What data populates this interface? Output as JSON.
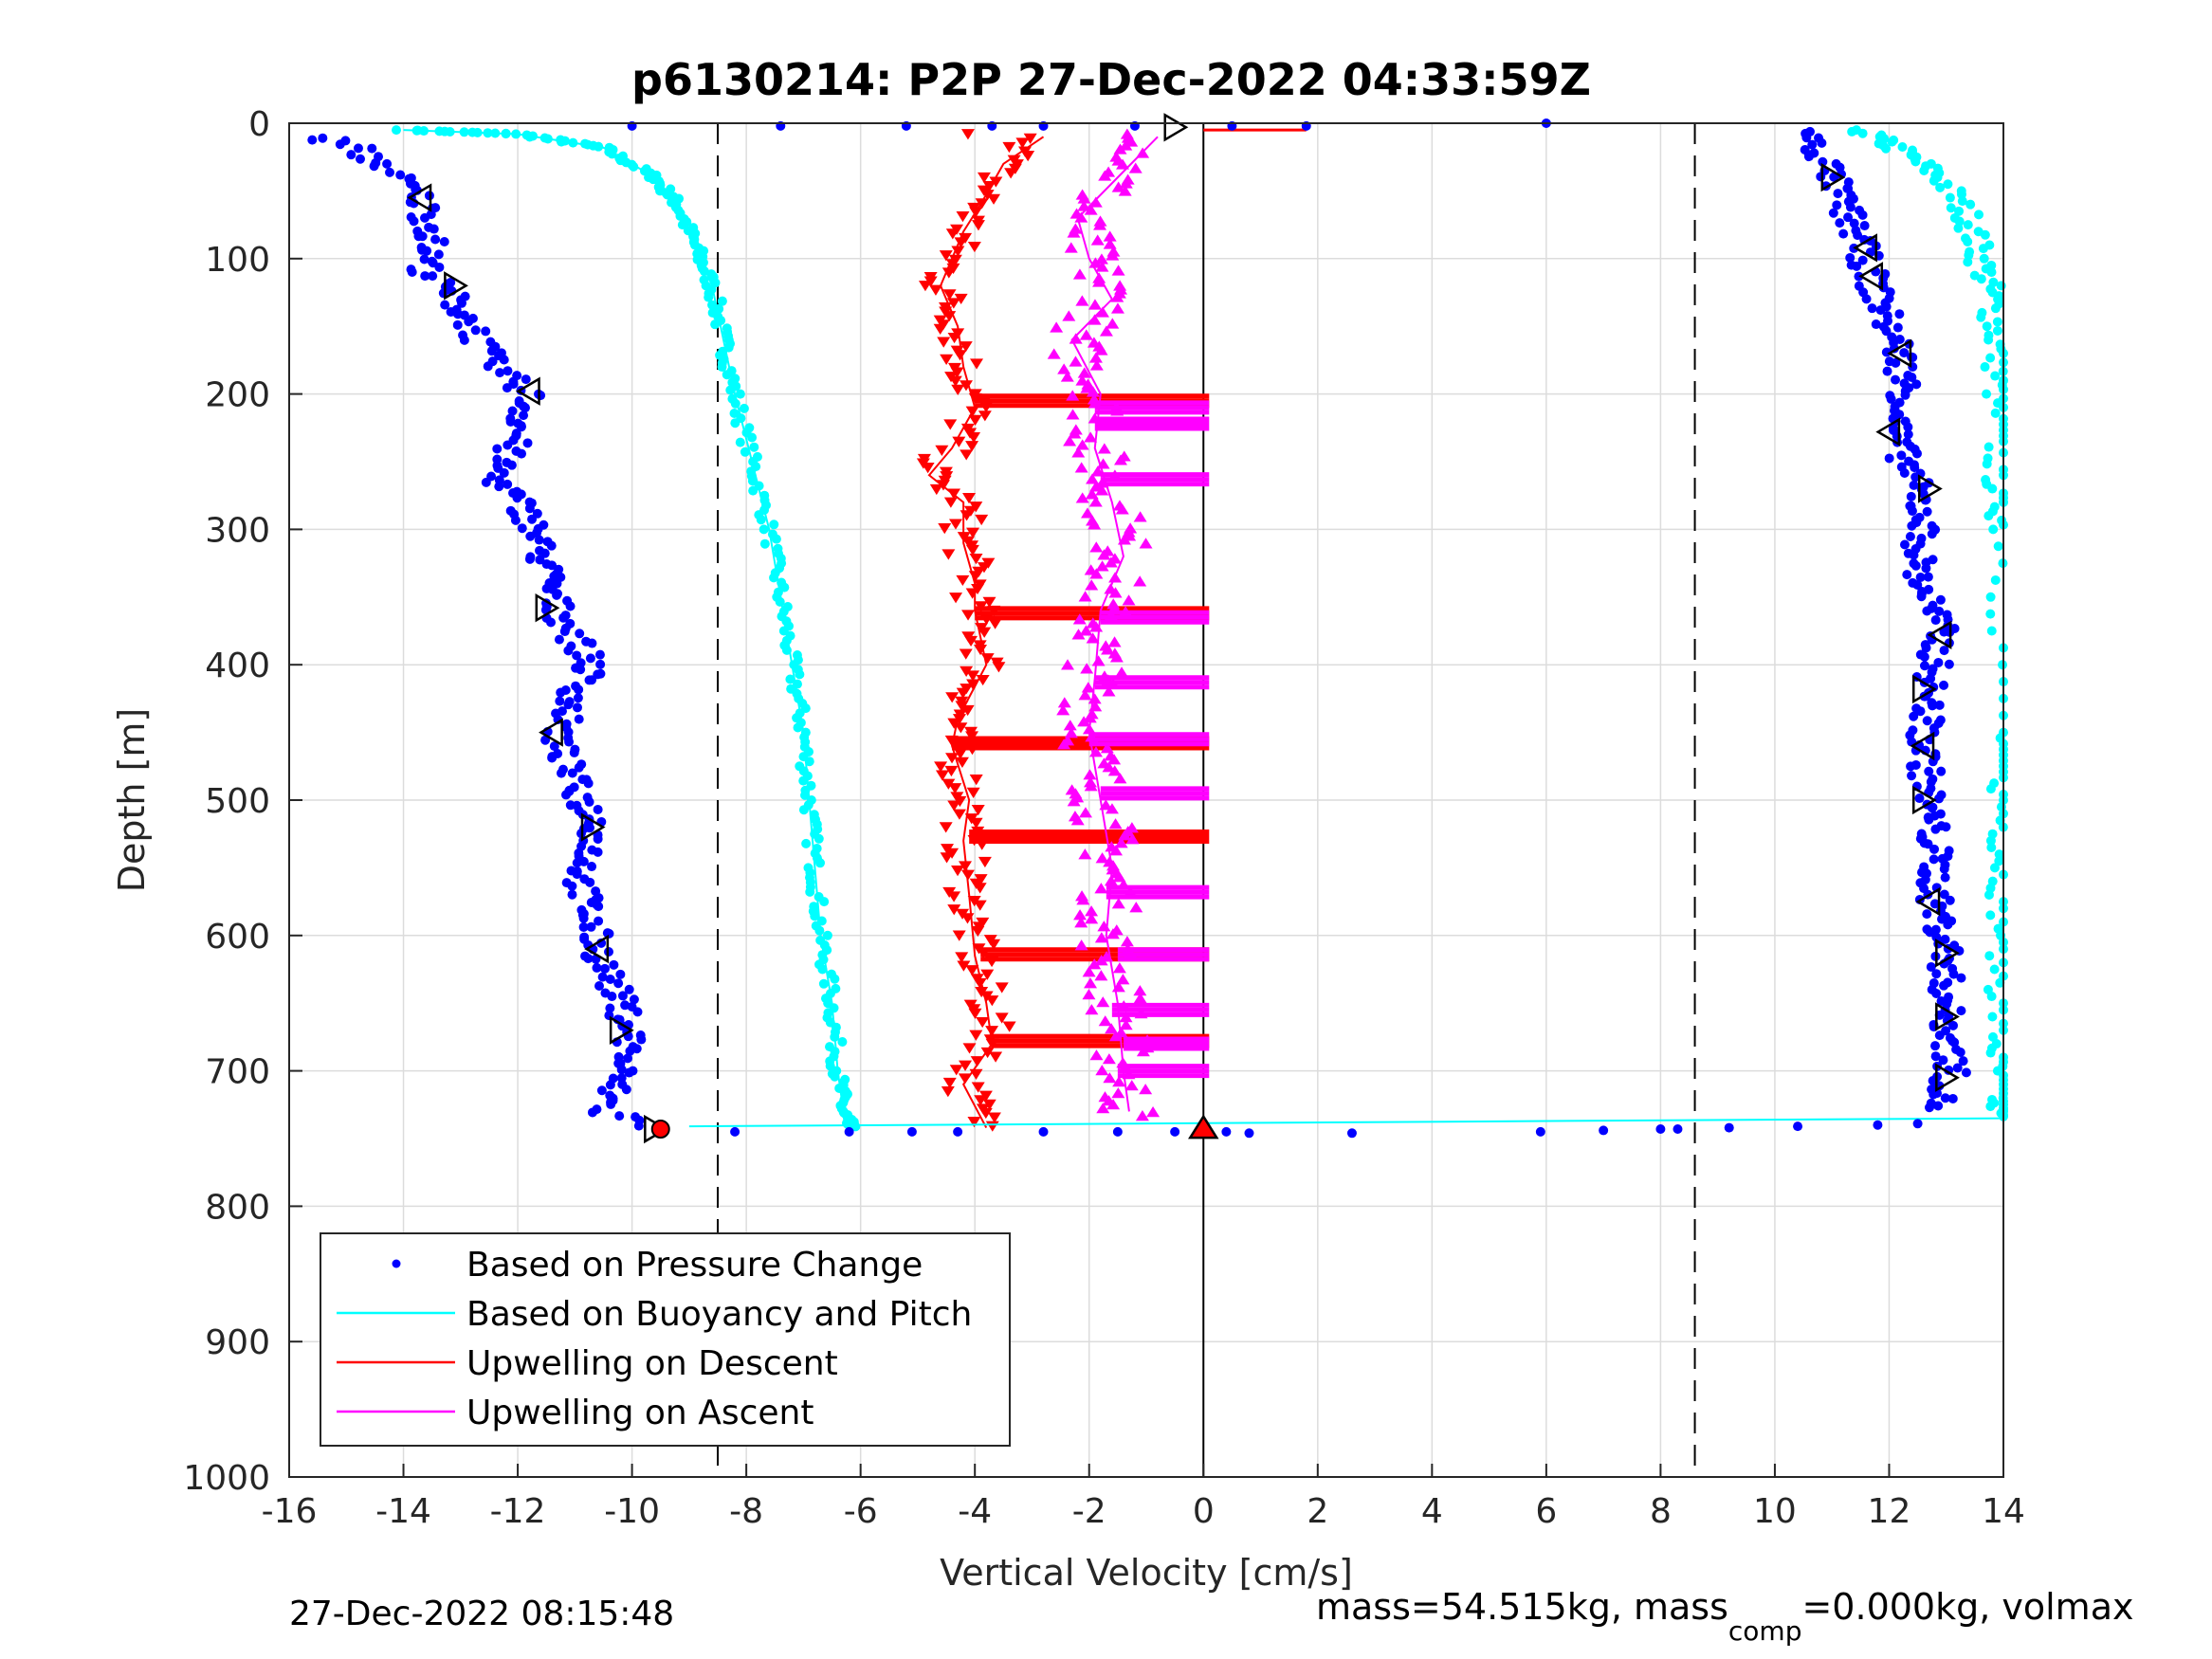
{
  "figure": {
    "title": "p6130214: P2P 27-Dec-2022 04:33:59Z",
    "xlabel": "Vertical Velocity [cm/s]",
    "ylabel": "Depth [m]",
    "footer_left": "27-Dec-2022 08:15:48",
    "footer_right_pre": "mass=54.515kg, mass",
    "footer_right_sub": "comp",
    "footer_right_post": "=0.000kg, volmax"
  },
  "colors": {
    "pressure": "#0000ff",
    "buoyancy": "#00ffff",
    "descent": "#ff0000",
    "ascent": "#ff00ff",
    "axis": "#262626",
    "grid": "#dcdcdc"
  },
  "chart_data": {
    "type": "scatter",
    "title": "p6130214: P2P 27-Dec-2022 04:33:59Z",
    "xlabel": "Vertical Velocity [cm/s]",
    "ylabel": "Depth [m]",
    "xlim": [
      -16,
      14
    ],
    "ylim": [
      0,
      1000
    ],
    "y_reversed": true,
    "grid": true,
    "legend_position": "bottom-left",
    "xticks": [
      -16,
      -14,
      -12,
      -10,
      -8,
      -6,
      -4,
      -2,
      0,
      2,
      4,
      6,
      8,
      10,
      12,
      14
    ],
    "xtick_labels": [
      "-16",
      "-14",
      "-12",
      "-10",
      "-8",
      "-6",
      "-4",
      "-2",
      "0",
      "2",
      "4",
      "6",
      "8",
      "10",
      "12",
      "14"
    ],
    "yticks": [
      0,
      100,
      200,
      300,
      400,
      500,
      600,
      700,
      800,
      900,
      1000
    ],
    "ytick_labels": [
      "0",
      "100",
      "200",
      "300",
      "400",
      "500",
      "600",
      "700",
      "800",
      "900",
      "1000"
    ],
    "reference_lines": {
      "dashed_x": [
        -8.5,
        8.6
      ],
      "solid_x": [
        0
      ]
    },
    "series": [
      {
        "name": "Based on Pressure Change",
        "style": "dots",
        "descent": [
          [
            -15.5,
            10
          ],
          [
            -14.8,
            20
          ],
          [
            -14.2,
            35
          ],
          [
            -13.7,
            55
          ],
          [
            -13.5,
            80
          ],
          [
            -13.6,
            110
          ],
          [
            -13.2,
            125
          ],
          [
            -12.8,
            150
          ],
          [
            -12.5,
            175
          ],
          [
            -11.8,
            200
          ],
          [
            -12.0,
            230
          ],
          [
            -12.4,
            260
          ],
          [
            -11.8,
            290
          ],
          [
            -11.5,
            330
          ],
          [
            -11.3,
            360
          ],
          [
            -10.7,
            400
          ],
          [
            -11.1,
            430
          ],
          [
            -11.3,
            455
          ],
          [
            -11.0,
            490
          ],
          [
            -10.6,
            520
          ],
          [
            -10.9,
            560
          ],
          [
            -10.6,
            610
          ],
          [
            -10.2,
            650
          ],
          [
            -10.0,
            675
          ],
          [
            -10.2,
            700
          ],
          [
            -10.5,
            730
          ],
          [
            -9.5,
            742
          ]
        ],
        "ascent": [
          [
            10.5,
            5
          ],
          [
            10.9,
            30
          ],
          [
            11.2,
            60
          ],
          [
            11.5,
            90
          ],
          [
            11.7,
            115
          ],
          [
            12.0,
            150
          ],
          [
            12.2,
            170
          ],
          [
            12.3,
            200
          ],
          [
            12.1,
            230
          ],
          [
            12.4,
            260
          ],
          [
            12.6,
            290
          ],
          [
            12.5,
            330
          ],
          [
            12.9,
            375
          ],
          [
            12.7,
            420
          ],
          [
            12.6,
            460
          ],
          [
            12.7,
            500
          ],
          [
            12.8,
            540
          ],
          [
            12.8,
            575
          ],
          [
            13.0,
            610
          ],
          [
            13.0,
            660
          ],
          [
            13.1,
            700
          ],
          [
            12.8,
            730
          ]
        ],
        "markers": [
          [
            -13.7,
            55,
            "left"
          ],
          [
            -13.1,
            120,
            "right"
          ],
          [
            -11.8,
            198,
            "left"
          ],
          [
            -11.5,
            358,
            "right"
          ],
          [
            -11.4,
            450,
            "left"
          ],
          [
            -10.7,
            520,
            "right"
          ],
          [
            -10.6,
            610,
            "left"
          ],
          [
            -10.2,
            670,
            "right"
          ],
          [
            -9.6,
            743,
            "right"
          ],
          [
            -0.5,
            3,
            "right"
          ],
          [
            11.0,
            40,
            "right"
          ],
          [
            11.6,
            92,
            "left"
          ],
          [
            11.7,
            113,
            "left"
          ],
          [
            12.2,
            170,
            "left"
          ],
          [
            12.0,
            228,
            "left"
          ],
          [
            12.7,
            270,
            "right"
          ],
          [
            12.9,
            378,
            "left"
          ],
          [
            12.6,
            418,
            "right"
          ],
          [
            12.6,
            460,
            "left"
          ],
          [
            12.6,
            500,
            "right"
          ],
          [
            12.7,
            575,
            "left"
          ],
          [
            13.0,
            613,
            "right"
          ],
          [
            13.0,
            660,
            "right"
          ],
          [
            13.0,
            705,
            "right"
          ]
        ]
      },
      {
        "name": "Based on Buoyancy and Pitch",
        "style": "line-dots",
        "descent": [
          [
            -14.0,
            5
          ],
          [
            -12.0,
            8
          ],
          [
            -10.5,
            18
          ],
          [
            -9.6,
            40
          ],
          [
            -9.2,
            60
          ],
          [
            -8.9,
            90
          ],
          [
            -8.6,
            120
          ],
          [
            -8.4,
            160
          ],
          [
            -8.2,
            200
          ],
          [
            -7.9,
            250
          ],
          [
            -7.6,
            300
          ],
          [
            -7.4,
            350
          ],
          [
            -7.2,
            400
          ],
          [
            -7.0,
            450
          ],
          [
            -6.9,
            500
          ],
          [
            -6.8,
            550
          ],
          [
            -6.7,
            600
          ],
          [
            -6.5,
            650
          ],
          [
            -6.4,
            700
          ],
          [
            -6.3,
            730
          ],
          [
            -6.2,
            742
          ]
        ],
        "ascent": [
          [
            11.5,
            5
          ],
          [
            12.2,
            20
          ],
          [
            12.9,
            40
          ],
          [
            13.4,
            70
          ],
          [
            13.6,
            100
          ],
          [
            13.8,
            130
          ],
          [
            13.9,
            170
          ],
          [
            13.9,
            210
          ],
          [
            13.9,
            260
          ],
          [
            14.0,
            300
          ],
          [
            14.0,
            450
          ],
          [
            14.0,
            500
          ],
          [
            14.0,
            560
          ],
          [
            14.0,
            620
          ],
          [
            13.9,
            680
          ],
          [
            13.9,
            720
          ],
          [
            14.0,
            735
          ]
        ]
      },
      {
        "name": "Upwelling on Descent",
        "style": "down-triangles",
        "profile": [
          [
            -2.8,
            10
          ],
          [
            -3.5,
            30
          ],
          [
            -3.9,
            60
          ],
          [
            -4.2,
            80
          ],
          [
            -4.4,
            100
          ],
          [
            -4.6,
            120
          ],
          [
            -4.3,
            150
          ],
          [
            -4.2,
            180
          ],
          [
            -4.0,
            210
          ],
          [
            -4.4,
            240
          ],
          [
            -4.8,
            260
          ],
          [
            -4.2,
            280
          ],
          [
            -4.2,
            310
          ],
          [
            -4.0,
            340
          ],
          [
            -4.0,
            360
          ],
          [
            -3.8,
            400
          ],
          [
            -4.3,
            440
          ],
          [
            -4.4,
            460
          ],
          [
            -4.1,
            500
          ],
          [
            -4.2,
            530
          ],
          [
            -4.1,
            570
          ],
          [
            -4.0,
            615
          ],
          [
            -3.8,
            650
          ],
          [
            -3.7,
            680
          ],
          [
            -4.2,
            710
          ],
          [
            -3.8,
            742
          ]
        ],
        "bars": [
          [
            205,
            -4.0
          ],
          [
            362,
            -4.0
          ],
          [
            458,
            -4.4
          ],
          [
            527,
            -4.1
          ],
          [
            614,
            -3.9
          ],
          [
            678,
            -3.7
          ]
        ],
        "surface_spike": [
          [
            0,
            5
          ],
          [
            1.8,
            5
          ]
        ]
      },
      {
        "name": "Upwelling on Ascent",
        "style": "up-triangles",
        "profile": [
          [
            -0.8,
            10
          ],
          [
            -1.5,
            40
          ],
          [
            -2.2,
            70
          ],
          [
            -2.0,
            100
          ],
          [
            -1.6,
            130
          ],
          [
            -2.3,
            160
          ],
          [
            -1.8,
            200
          ],
          [
            -1.9,
            240
          ],
          [
            -1.6,
            280
          ],
          [
            -1.4,
            320
          ],
          [
            -1.8,
            360
          ],
          [
            -1.9,
            410
          ],
          [
            -2.0,
            450
          ],
          [
            -1.8,
            500
          ],
          [
            -1.6,
            550
          ],
          [
            -1.7,
            600
          ],
          [
            -1.5,
            650
          ],
          [
            -1.4,
            700
          ],
          [
            -1.3,
            730
          ]
        ],
        "bars": [
          [
            210,
            -1.9
          ],
          [
            222,
            -1.9
          ],
          [
            263,
            -1.8
          ],
          [
            365,
            -1.8
          ],
          [
            413,
            -1.9
          ],
          [
            455,
            -2.0
          ],
          [
            495,
            -1.8
          ],
          [
            568,
            -1.7
          ],
          [
            614,
            -1.5
          ],
          [
            655,
            -1.6
          ],
          [
            680,
            -1.4
          ],
          [
            700,
            -1.5
          ]
        ]
      }
    ],
    "bottom_crossing": {
      "line": [
        [
          -9.0,
          741
        ],
        [
          14.0,
          735
        ]
      ],
      "dots": [
        [
          -8.2,
          745
        ],
        [
          -6.2,
          745
        ],
        [
          -5.1,
          745
        ],
        [
          -4.3,
          745
        ],
        [
          -2.8,
          745
        ],
        [
          -1.5,
          745
        ],
        [
          -0.5,
          745
        ],
        [
          0.4,
          745
        ],
        [
          0.8,
          746
        ],
        [
          2.6,
          746
        ],
        [
          5.9,
          745
        ],
        [
          7.0,
          744
        ],
        [
          8.0,
          743
        ],
        [
          8.3,
          743
        ],
        [
          9.2,
          742
        ],
        [
          10.4,
          741
        ],
        [
          11.8,
          740
        ],
        [
          12.5,
          739
        ]
      ],
      "triangle_marker": [
        0.0,
        742
      ],
      "star_marker": [
        -9.5,
        743
      ]
    },
    "surface_scatter": [
      [
        -10,
        2
      ],
      [
        -7.4,
        2
      ],
      [
        -5.2,
        2
      ],
      [
        -3.7,
        2
      ],
      [
        -2.8,
        2
      ],
      [
        -1.2,
        2
      ],
      [
        0.5,
        2
      ],
      [
        1.8,
        2
      ],
      [
        6.0,
        0
      ]
    ]
  }
}
